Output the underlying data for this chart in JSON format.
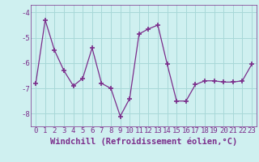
{
  "x": [
    0,
    1,
    2,
    3,
    4,
    5,
    6,
    7,
    8,
    9,
    10,
    11,
    12,
    13,
    14,
    15,
    16,
    17,
    18,
    19,
    20,
    21,
    22,
    23
  ],
  "y": [
    -6.8,
    -4.3,
    -5.5,
    -6.3,
    -6.9,
    -6.6,
    -5.4,
    -6.8,
    -7.0,
    -8.1,
    -7.4,
    -4.85,
    -4.65,
    -4.5,
    -6.05,
    -7.5,
    -7.5,
    -6.85,
    -6.7,
    -6.7,
    -6.75,
    -6.75,
    -6.7,
    -6.05
  ],
  "line_color": "#7b2d8b",
  "marker": "+",
  "marker_color": "#7b2d8b",
  "bg_color": "#cff0f0",
  "grid_color": "#a8d8d8",
  "xlabel": "Windchill (Refroidissement éolien,°C)",
  "ylim": [
    -8.5,
    -3.7
  ],
  "xlim": [
    -0.5,
    23.5
  ],
  "yticks": [
    -8,
    -7,
    -6,
    -5,
    -4
  ],
  "xticks": [
    0,
    1,
    2,
    3,
    4,
    5,
    6,
    7,
    8,
    9,
    10,
    11,
    12,
    13,
    14,
    15,
    16,
    17,
    18,
    19,
    20,
    21,
    22,
    23
  ],
  "tick_fontsize": 6.5,
  "xlabel_fontsize": 7.5
}
